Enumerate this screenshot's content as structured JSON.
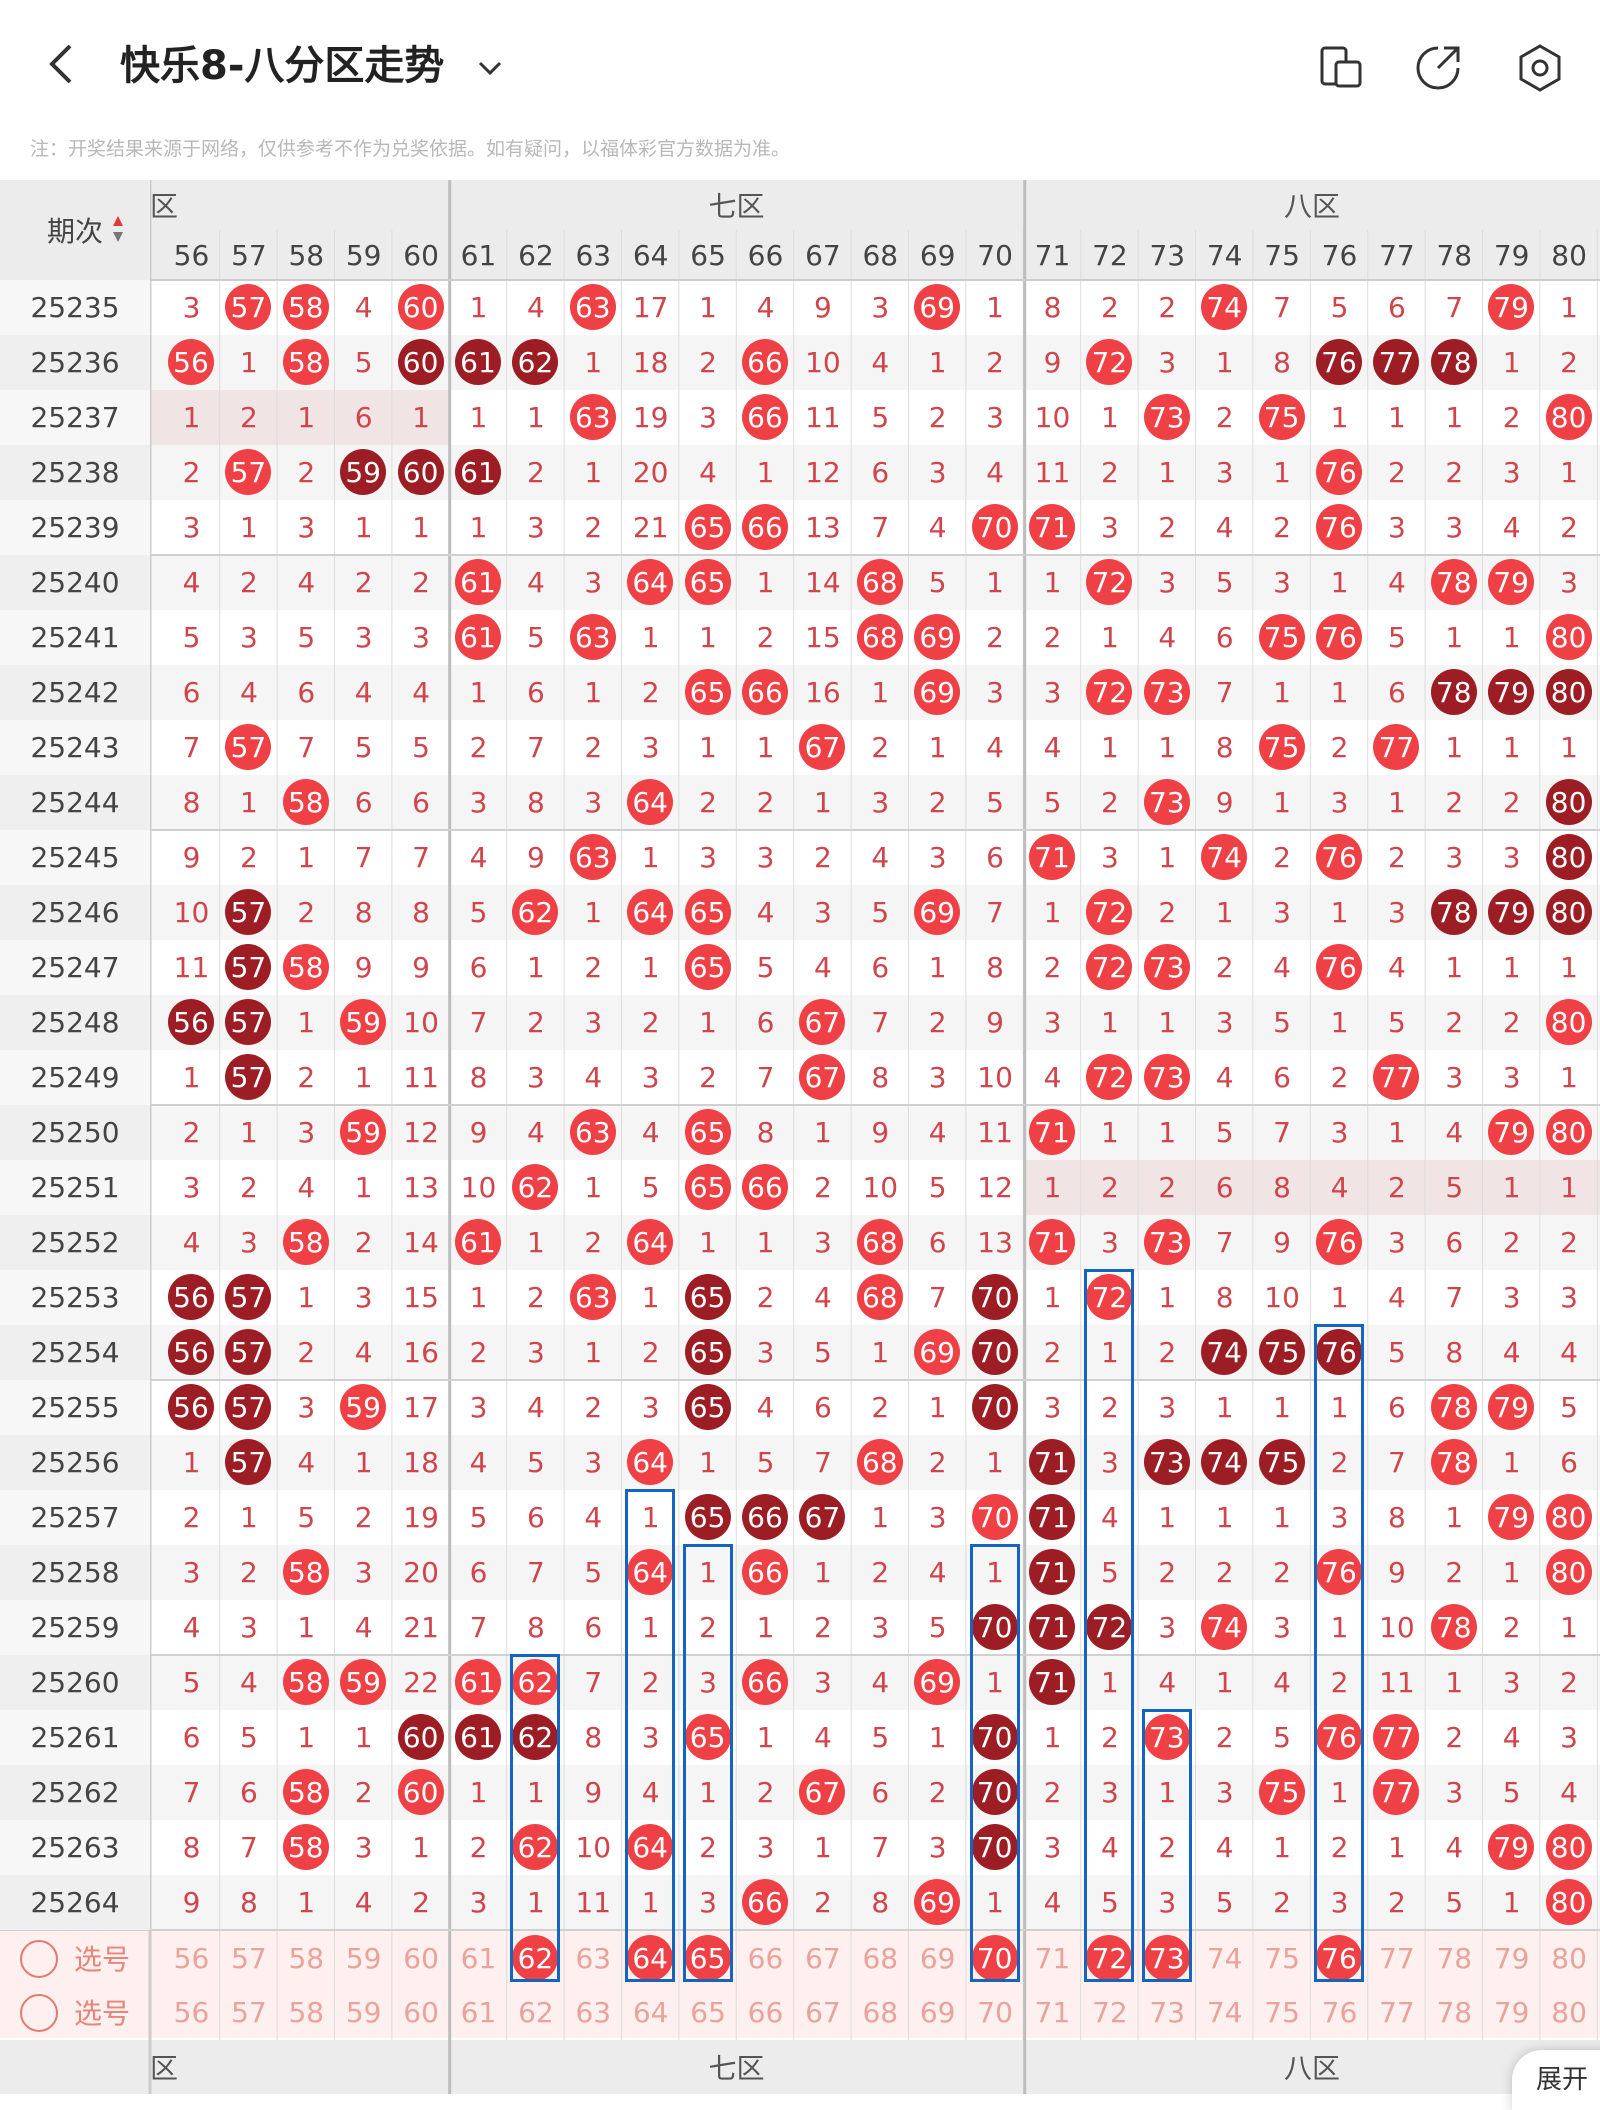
{
  "header": {
    "title": "快乐8-八分区走势",
    "icons": [
      "back-arrow-icon",
      "chevron-down-icon",
      "split-screen-icon",
      "share-icon",
      "settings-icon"
    ]
  },
  "notice": "注：开奖结果来源于网络，仅供参考不作为兑奖依据。如有疑问，以福体彩官方数据为准。",
  "table": {
    "period_header": "期次",
    "zones": [
      "六区",
      "七区",
      "八区"
    ],
    "columns": [
      56,
      57,
      58,
      59,
      60,
      61,
      62,
      63,
      64,
      65,
      66,
      67,
      68,
      69,
      70,
      71,
      72,
      73,
      74,
      75,
      76,
      77,
      78,
      79,
      80
    ],
    "rows": [
      {
        "p": "25235",
        "v": [
          "3",
          "57",
          "58",
          "4",
          "60",
          "1",
          "4",
          "63",
          "17",
          "1",
          "4",
          "9",
          "3",
          "69",
          "1",
          "8",
          "2",
          "2",
          "74",
          "7",
          "5",
          "6",
          "7",
          "79",
          "1"
        ],
        "d": []
      },
      {
        "p": "25236",
        "v": [
          "56",
          "1",
          "58",
          "5",
          "60",
          "61",
          "62",
          "1",
          "18",
          "2",
          "66",
          "10",
          "4",
          "1",
          "2",
          "9",
          "72",
          "3",
          "1",
          "8",
          "76",
          "77",
          "78",
          "1",
          "2"
        ],
        "d": [
          "60",
          "61",
          "62",
          "76",
          "77",
          "78"
        ]
      },
      {
        "p": "25237",
        "v": [
          "1",
          "2",
          "1",
          "6",
          "1",
          "1",
          "1",
          "63",
          "19",
          "3",
          "66",
          "11",
          "5",
          "2",
          "3",
          "10",
          "1",
          "73",
          "2",
          "75",
          "1",
          "1",
          "1",
          "2",
          "80"
        ],
        "d": []
      },
      {
        "p": "25238",
        "v": [
          "2",
          "57",
          "2",
          "59",
          "60",
          "61",
          "2",
          "1",
          "20",
          "4",
          "1",
          "12",
          "6",
          "3",
          "4",
          "11",
          "2",
          "1",
          "3",
          "1",
          "76",
          "2",
          "2",
          "3",
          "1"
        ],
        "d": [
          "59",
          "60",
          "61"
        ]
      },
      {
        "p": "25239",
        "v": [
          "3",
          "1",
          "3",
          "1",
          "1",
          "1",
          "3",
          "2",
          "21",
          "65",
          "66",
          "13",
          "7",
          "4",
          "70",
          "71",
          "3",
          "2",
          "4",
          "2",
          "76",
          "3",
          "3",
          "4",
          "2"
        ],
        "d": []
      },
      {
        "p": "25240",
        "v": [
          "4",
          "2",
          "4",
          "2",
          "2",
          "61",
          "4",
          "3",
          "64",
          "65",
          "1",
          "14",
          "68",
          "5",
          "1",
          "1",
          "72",
          "3",
          "5",
          "3",
          "1",
          "4",
          "78",
          "79",
          "3"
        ],
        "d": []
      },
      {
        "p": "25241",
        "v": [
          "5",
          "3",
          "5",
          "3",
          "3",
          "61",
          "5",
          "63",
          "1",
          "1",
          "2",
          "15",
          "68",
          "69",
          "2",
          "2",
          "1",
          "4",
          "6",
          "75",
          "76",
          "5",
          "1",
          "1",
          "80"
        ],
        "d": []
      },
      {
        "p": "25242",
        "v": [
          "6",
          "4",
          "6",
          "4",
          "4",
          "1",
          "6",
          "1",
          "2",
          "65",
          "66",
          "16",
          "1",
          "69",
          "3",
          "3",
          "72",
          "73",
          "7",
          "1",
          "1",
          "6",
          "78",
          "79",
          "80"
        ],
        "d": [
          "78",
          "79",
          "80"
        ]
      },
      {
        "p": "25243",
        "v": [
          "7",
          "57",
          "7",
          "5",
          "5",
          "2",
          "7",
          "2",
          "3",
          "1",
          "1",
          "67",
          "2",
          "1",
          "4",
          "4",
          "1",
          "1",
          "8",
          "75",
          "2",
          "77",
          "1",
          "1",
          "1"
        ],
        "d": []
      },
      {
        "p": "25244",
        "v": [
          "8",
          "1",
          "58",
          "6",
          "6",
          "3",
          "8",
          "3",
          "64",
          "2",
          "2",
          "1",
          "3",
          "2",
          "5",
          "5",
          "2",
          "73",
          "9",
          "1",
          "3",
          "1",
          "2",
          "2",
          "80"
        ],
        "d": [
          "80"
        ]
      },
      {
        "p": "25245",
        "v": [
          "9",
          "2",
          "1",
          "7",
          "7",
          "4",
          "9",
          "63",
          "1",
          "3",
          "3",
          "2",
          "4",
          "3",
          "6",
          "71",
          "3",
          "1",
          "74",
          "2",
          "76",
          "2",
          "3",
          "3",
          "80"
        ],
        "d": [
          "80"
        ]
      },
      {
        "p": "25246",
        "v": [
          "10",
          "57",
          "2",
          "8",
          "8",
          "5",
          "62",
          "1",
          "64",
          "65",
          "4",
          "3",
          "5",
          "69",
          "7",
          "1",
          "72",
          "2",
          "1",
          "3",
          "1",
          "3",
          "78",
          "79",
          "80"
        ],
        "d": [
          "57",
          "78",
          "79",
          "80"
        ]
      },
      {
        "p": "25247",
        "v": [
          "11",
          "57",
          "58",
          "9",
          "9",
          "6",
          "1",
          "2",
          "1",
          "65",
          "5",
          "4",
          "6",
          "1",
          "8",
          "2",
          "72",
          "73",
          "2",
          "4",
          "76",
          "4",
          "1",
          "1",
          "1"
        ],
        "d": [
          "57"
        ]
      },
      {
        "p": "25248",
        "v": [
          "56",
          "57",
          "1",
          "59",
          "10",
          "7",
          "2",
          "3",
          "2",
          "1",
          "6",
          "67",
          "7",
          "2",
          "9",
          "3",
          "1",
          "1",
          "3",
          "5",
          "1",
          "5",
          "2",
          "2",
          "80"
        ],
        "d": [
          "56",
          "57"
        ]
      },
      {
        "p": "25249",
        "v": [
          "1",
          "57",
          "2",
          "1",
          "11",
          "8",
          "3",
          "4",
          "3",
          "2",
          "7",
          "67",
          "8",
          "3",
          "10",
          "4",
          "72",
          "73",
          "4",
          "6",
          "2",
          "77",
          "3",
          "3",
          "1"
        ],
        "d": [
          "57"
        ]
      },
      {
        "p": "25250",
        "v": [
          "2",
          "1",
          "3",
          "59",
          "12",
          "9",
          "4",
          "63",
          "4",
          "65",
          "8",
          "1",
          "9",
          "4",
          "11",
          "71",
          "1",
          "1",
          "5",
          "7",
          "3",
          "1",
          "4",
          "79",
          "80"
        ],
        "d": []
      },
      {
        "p": "25251",
        "v": [
          "3",
          "2",
          "4",
          "1",
          "13",
          "10",
          "62",
          "1",
          "5",
          "65",
          "66",
          "2",
          "10",
          "5",
          "12",
          "1",
          "2",
          "2",
          "6",
          "8",
          "4",
          "2",
          "5",
          "1",
          "1"
        ],
        "d": []
      },
      {
        "p": "25252",
        "v": [
          "4",
          "3",
          "58",
          "2",
          "14",
          "61",
          "1",
          "2",
          "64",
          "1",
          "1",
          "3",
          "68",
          "6",
          "13",
          "71",
          "3",
          "73",
          "7",
          "9",
          "76",
          "3",
          "6",
          "2",
          "2"
        ],
        "d": []
      },
      {
        "p": "25253",
        "v": [
          "56",
          "57",
          "1",
          "3",
          "15",
          "1",
          "2",
          "63",
          "1",
          "65",
          "2",
          "4",
          "68",
          "7",
          "70",
          "1",
          "72",
          "1",
          "8",
          "10",
          "1",
          "4",
          "7",
          "3",
          "3"
        ],
        "d": [
          "56",
          "57",
          "65",
          "70"
        ]
      },
      {
        "p": "25254",
        "v": [
          "56",
          "57",
          "2",
          "4",
          "16",
          "2",
          "3",
          "1",
          "2",
          "65",
          "3",
          "5",
          "1",
          "69",
          "70",
          "2",
          "1",
          "2",
          "74",
          "75",
          "76",
          "5",
          "8",
          "4",
          "4"
        ],
        "d": [
          "56",
          "57",
          "65",
          "70",
          "74",
          "75",
          "76"
        ]
      },
      {
        "p": "25255",
        "v": [
          "56",
          "57",
          "3",
          "59",
          "17",
          "3",
          "4",
          "2",
          "3",
          "65",
          "4",
          "6",
          "2",
          "1",
          "70",
          "3",
          "2",
          "3",
          "1",
          "1",
          "1",
          "6",
          "78",
          "79",
          "5"
        ],
        "d": [
          "56",
          "57",
          "65",
          "70"
        ]
      },
      {
        "p": "25256",
        "v": [
          "1",
          "57",
          "4",
          "1",
          "18",
          "4",
          "5",
          "3",
          "64",
          "1",
          "5",
          "7",
          "68",
          "2",
          "1",
          "71",
          "3",
          "73",
          "74",
          "75",
          "2",
          "7",
          "78",
          "1",
          "6"
        ],
        "d": [
          "57",
          "71",
          "73",
          "74",
          "75"
        ]
      },
      {
        "p": "25257",
        "v": [
          "2",
          "1",
          "5",
          "2",
          "19",
          "5",
          "6",
          "4",
          "1",
          "65",
          "66",
          "67",
          "1",
          "3",
          "70",
          "71",
          "4",
          "1",
          "1",
          "1",
          "3",
          "8",
          "1",
          "79",
          "80"
        ],
        "d": [
          "65",
          "66",
          "67",
          "71"
        ]
      },
      {
        "p": "25258",
        "v": [
          "3",
          "2",
          "58",
          "3",
          "20",
          "6",
          "7",
          "5",
          "64",
          "1",
          "66",
          "1",
          "2",
          "4",
          "1",
          "71",
          "5",
          "2",
          "2",
          "2",
          "76",
          "9",
          "2",
          "1",
          "80"
        ],
        "d": [
          "71"
        ]
      },
      {
        "p": "25259",
        "v": [
          "4",
          "3",
          "1",
          "4",
          "21",
          "7",
          "8",
          "6",
          "1",
          "2",
          "1",
          "2",
          "3",
          "5",
          "70",
          "71",
          "72",
          "3",
          "74",
          "3",
          "1",
          "10",
          "78",
          "2",
          "1"
        ],
        "d": [
          "70",
          "71",
          "72"
        ]
      },
      {
        "p": "25260",
        "v": [
          "5",
          "4",
          "58",
          "59",
          "22",
          "61",
          "62",
          "7",
          "2",
          "3",
          "66",
          "3",
          "4",
          "69",
          "1",
          "71",
          "1",
          "4",
          "1",
          "4",
          "2",
          "11",
          "1",
          "3",
          "2"
        ],
        "d": [
          "71"
        ]
      },
      {
        "p": "25261",
        "v": [
          "6",
          "5",
          "1",
          "1",
          "60",
          "61",
          "62",
          "8",
          "3",
          "65",
          "1",
          "4",
          "5",
          "1",
          "70",
          "1",
          "2",
          "73",
          "2",
          "5",
          "76",
          "77",
          "2",
          "4",
          "3"
        ],
        "d": [
          "60",
          "61",
          "62",
          "70"
        ]
      },
      {
        "p": "25262",
        "v": [
          "7",
          "6",
          "58",
          "2",
          "60",
          "1",
          "1",
          "9",
          "4",
          "1",
          "2",
          "67",
          "6",
          "2",
          "70",
          "2",
          "3",
          "1",
          "3",
          "75",
          "1",
          "77",
          "3",
          "5",
          "4"
        ],
        "d": [
          "70"
        ]
      },
      {
        "p": "25263",
        "v": [
          "8",
          "7",
          "58",
          "3",
          "1",
          "2",
          "62",
          "10",
          "64",
          "2",
          "3",
          "1",
          "7",
          "3",
          "70",
          "3",
          "4",
          "2",
          "4",
          "1",
          "2",
          "1",
          "4",
          "79",
          "80"
        ],
        "d": [
          "70"
        ]
      },
      {
        "p": "25264",
        "v": [
          "9",
          "8",
          "1",
          "4",
          "2",
          "3",
          "1",
          "11",
          "1",
          "3",
          "66",
          "2",
          "8",
          "69",
          "1",
          "4",
          "5",
          "3",
          "5",
          "2",
          "3",
          "2",
          "5",
          "1",
          "80"
        ],
        "d": []
      }
    ],
    "select_label": "选号",
    "select_rows": [
      {
        "selected": [
          "62",
          "64",
          "65",
          "70",
          "72",
          "73",
          "76"
        ]
      },
      {
        "selected": []
      }
    ],
    "expand_label": "展开"
  }
}
